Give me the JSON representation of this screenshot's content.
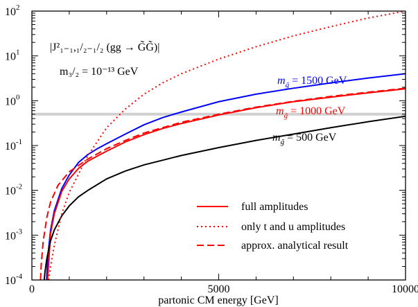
{
  "chart_data": {
    "type": "line",
    "xlabel": "partonic CM energy [GeV]",
    "ylabel": "",
    "xlim": [
      0,
      10000
    ],
    "ylim": [
      0.0001,
      100
    ],
    "y_scale": "log",
    "x_ticks": [
      {
        "value": 0,
        "label": "0"
      },
      {
        "value": 5000,
        "label": "5000"
      },
      {
        "value": 10000,
        "label": "10000"
      }
    ],
    "y_ticks": [
      {
        "value": 0.0001,
        "mantissa": "10",
        "exponent": "-4"
      },
      {
        "value": 0.001,
        "mantissa": "10",
        "exponent": "-3"
      },
      {
        "value": 0.01,
        "mantissa": "10",
        "exponent": "-2"
      },
      {
        "value": 0.1,
        "mantissa": "10",
        "exponent": "-1"
      },
      {
        "value": 1,
        "mantissa": "10",
        "exponent": "0"
      },
      {
        "value": 10,
        "mantissa": "10",
        "exponent": "1"
      },
      {
        "value": 100,
        "mantissa": "10",
        "exponent": "2"
      }
    ],
    "reference_line": {
      "y": 0.5,
      "color": "#d0d0d0"
    },
    "annotation": {
      "formula": "|J²₁₋₁,₁/₂₋₁/₂ (gg → G̃G̃)|",
      "mass": "m₃/₂ = 10⁻¹³ GeV"
    },
    "series": [
      {
        "label": "m_g̃ = 1500 GeV",
        "color": "#0000ff",
        "dash": "solid",
        "x": [
          395,
          420,
          500,
          600,
          800,
          1000,
          1250,
          1500,
          1750,
          2000,
          2500,
          3000,
          3500,
          4000,
          5000,
          6000,
          7000,
          8000,
          9000,
          10000
        ],
        "values": [
          0.0001,
          0.0003,
          0.0013,
          0.0035,
          0.011,
          0.022,
          0.042,
          0.063,
          0.085,
          0.11,
          0.18,
          0.29,
          0.42,
          0.56,
          0.95,
          1.4,
          1.9,
          2.5,
          3.2,
          4.0
        ]
      },
      {
        "label": "m_g̃ = 1000 GeV",
        "color": "#ff0000",
        "dash": "solid",
        "x": [
          420,
          500,
          600,
          800,
          1000,
          1250,
          1500,
          1750,
          2000,
          2500,
          3000,
          3500,
          4000,
          5000,
          6000,
          7000,
          8000,
          9000,
          10000
        ],
        "values": [
          0.0001,
          0.0011,
          0.003,
          0.0095,
          0.018,
          0.031,
          0.045,
          0.058,
          0.075,
          0.12,
          0.175,
          0.24,
          0.31,
          0.48,
          0.7,
          0.95,
          1.2,
          1.5,
          1.85
        ]
      },
      {
        "label": "m_g̃ = 500 GeV",
        "color": "#000000",
        "dash": "solid",
        "x": [
          330,
          350,
          400,
          500,
          600,
          800,
          1000,
          1250,
          1500,
          2000,
          2500,
          3000,
          3500,
          4000,
          5000,
          6000,
          7000,
          8000,
          9000,
          10000
        ],
        "values": [
          0.0001,
          0.00015,
          0.0003,
          0.00075,
          0.0013,
          0.0027,
          0.0045,
          0.0072,
          0.01,
          0.018,
          0.027,
          0.037,
          0.047,
          0.06,
          0.09,
          0.13,
          0.18,
          0.25,
          0.34,
          0.45
        ]
      },
      {
        "label": "only t and u amplitudes",
        "color": "#ff0000",
        "dash": "dotted",
        "x": [
          450,
          500,
          600,
          800,
          1000,
          1500,
          2000,
          2500,
          3000,
          3500,
          4000,
          5000,
          6000,
          7000,
          8000,
          9000,
          10000
        ],
        "values": [
          0.0001,
          0.0002,
          0.0006,
          0.003,
          0.009,
          0.06,
          0.25,
          0.65,
          1.4,
          2.5,
          4.0,
          8.5,
          16,
          28,
          45,
          70,
          100
        ]
      },
      {
        "label": "approx. analytical result",
        "color": "#ff0000",
        "dash": "dashed",
        "x": [
          230,
          250,
          300,
          400,
          500,
          700,
          1000,
          1500,
          2000,
          2500,
          3000,
          4000,
          5000,
          6000,
          7000,
          8000,
          9000,
          10000
        ],
        "values": [
          0.0001,
          0.00022,
          0.0007,
          0.0025,
          0.0055,
          0.013,
          0.026,
          0.05,
          0.085,
          0.13,
          0.19,
          0.33,
          0.5,
          0.72,
          0.97,
          1.25,
          1.55,
          1.9
        ]
      }
    ],
    "curve_labels": [
      {
        "name": "m-gluino-1500",
        "prefix": "m",
        "sub": "g̃",
        "text": " = 1500 GeV",
        "color": "#0000ff"
      },
      {
        "name": "m-gluino-1000",
        "prefix": "m",
        "sub": "g̃",
        "text": " = 1000 GeV",
        "color": "#ff0000"
      },
      {
        "name": "m-gluino-500",
        "prefix": "m",
        "sub": "g̃",
        "text": " = 500 GeV",
        "color": "#000000"
      }
    ],
    "legend": {
      "placement": "bottom-right",
      "entries": [
        {
          "label": "full amplitudes",
          "color": "#ff0000",
          "dash": "solid"
        },
        {
          "label": "only t and u amplitudes",
          "color": "#ff0000",
          "dash": "dotted"
        },
        {
          "label": "approx. analytical result",
          "color": "#ff0000",
          "dash": "dashed"
        }
      ]
    }
  }
}
